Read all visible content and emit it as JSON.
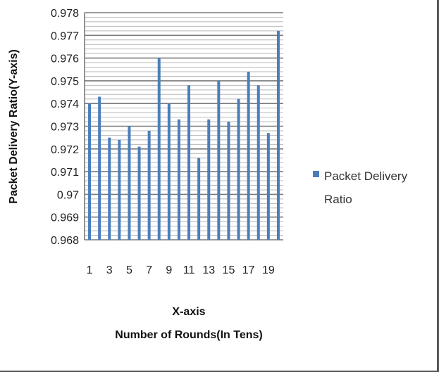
{
  "chart_data": {
    "type": "bar",
    "categories": [
      "1",
      "2",
      "3",
      "4",
      "5",
      "6",
      "7",
      "8",
      "9",
      "10",
      "11",
      "12",
      "13",
      "14",
      "15",
      "16",
      "17",
      "18",
      "19",
      "20"
    ],
    "x_tick_labels": [
      "1",
      "",
      "3",
      "",
      "5",
      "",
      "7",
      "",
      "9",
      "",
      "11",
      "",
      "13",
      "",
      "15",
      "",
      "17",
      "",
      "19",
      ""
    ],
    "series": [
      {
        "name": "Packet Delivery Ratio",
        "color": "#4a7ebb",
        "values": [
          0.974,
          0.9743,
          0.9725,
          0.9724,
          0.973,
          0.9721,
          0.9728,
          0.976,
          0.974,
          0.9733,
          0.9748,
          0.9716,
          0.9733,
          0.975,
          0.9732,
          0.9742,
          0.9754,
          0.9748,
          0.9727,
          0.9772
        ]
      }
    ],
    "ylim": [
      0.968,
      0.978
    ],
    "y_ticks": [
      "0.968",
      "0.969",
      "0.97",
      "0.971",
      "0.972",
      "0.973",
      "0.974",
      "0.975",
      "0.976",
      "0.977",
      "0.978"
    ],
    "ylabel": "Packet Delivery Ratio(Y-axis)",
    "xlabel_line1": "X-axis",
    "xlabel_line2": "Number of Rounds(In Tens)",
    "legend": {
      "label_line1": "Packet Delivery",
      "label_line2": "Ratio",
      "placement": "right"
    },
    "grid": true
  }
}
